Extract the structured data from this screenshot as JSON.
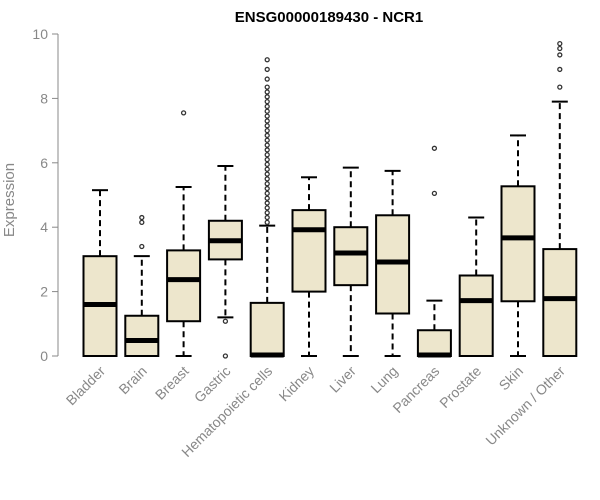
{
  "chart_data": {
    "type": "box",
    "title": "ENSG00000189430 - NCR1",
    "xlabel": "",
    "ylabel": "Expression",
    "ylim": [
      0,
      10
    ],
    "yticks": [
      0,
      2,
      4,
      6,
      8,
      10
    ],
    "colors": {
      "box_fill": "#ede6cc",
      "stroke": "#000000",
      "outlier": "#333333",
      "axis_text": "#888888"
    },
    "categories": [
      "Bladder",
      "Brain",
      "Breast",
      "Gastric",
      "Hematopoietic cells",
      "Kidney",
      "Liver",
      "Lung",
      "Pancreas",
      "Prostate",
      "Skin",
      "Unknown / Other"
    ],
    "boxes": [
      {
        "min": 0.0,
        "q1": 0.0,
        "median": 1.6,
        "q3": 3.1,
        "max": 5.15,
        "outliers": []
      },
      {
        "min": 0.0,
        "q1": 0.0,
        "median": 0.48,
        "q3": 1.25,
        "max": 3.1,
        "outliers": [
          3.4,
          4.15,
          4.3
        ]
      },
      {
        "min": 0.0,
        "q1": 1.08,
        "median": 2.37,
        "q3": 3.28,
        "max": 5.25,
        "outliers": [
          7.55
        ]
      },
      {
        "min": 1.2,
        "q1": 3.0,
        "median": 3.58,
        "q3": 4.2,
        "max": 5.9,
        "outliers": [
          0.0,
          1.08
        ]
      },
      {
        "min": 0.0,
        "q1": 0.0,
        "median": 0.03,
        "q3": 1.65,
        "max": 4.05,
        "outliers": [
          4.15,
          4.3,
          4.45,
          4.6,
          4.75,
          4.9,
          5.05,
          5.2,
          5.35,
          5.5,
          5.65,
          5.8,
          5.95,
          6.1,
          6.25,
          6.4,
          6.55,
          6.7,
          6.85,
          7.0,
          7.15,
          7.3,
          7.45,
          7.6,
          7.75,
          7.9,
          8.05,
          8.2,
          8.35,
          8.6,
          8.9,
          9.2
        ]
      },
      {
        "min": 0.0,
        "q1": 2.0,
        "median": 3.92,
        "q3": 4.53,
        "max": 5.55,
        "outliers": []
      },
      {
        "min": 0.0,
        "q1": 2.2,
        "median": 3.2,
        "q3": 4.0,
        "max": 5.85,
        "outliers": []
      },
      {
        "min": 0.0,
        "q1": 1.32,
        "median": 2.92,
        "q3": 4.37,
        "max": 5.75,
        "outliers": []
      },
      {
        "min": 0.0,
        "q1": 0.0,
        "median": 0.03,
        "q3": 0.8,
        "max": 1.72,
        "outliers": [
          5.05,
          6.45
        ]
      },
      {
        "min": 0.0,
        "q1": 0.0,
        "median": 1.72,
        "q3": 2.5,
        "max": 4.3,
        "outliers": []
      },
      {
        "min": 0.0,
        "q1": 1.7,
        "median": 3.67,
        "q3": 5.27,
        "max": 6.85,
        "outliers": []
      },
      {
        "min": 0.0,
        "q1": 0.0,
        "median": 1.78,
        "q3": 3.32,
        "max": 7.9,
        "outliers": [
          8.35,
          8.9,
          9.35,
          9.55,
          9.7
        ]
      }
    ]
  }
}
